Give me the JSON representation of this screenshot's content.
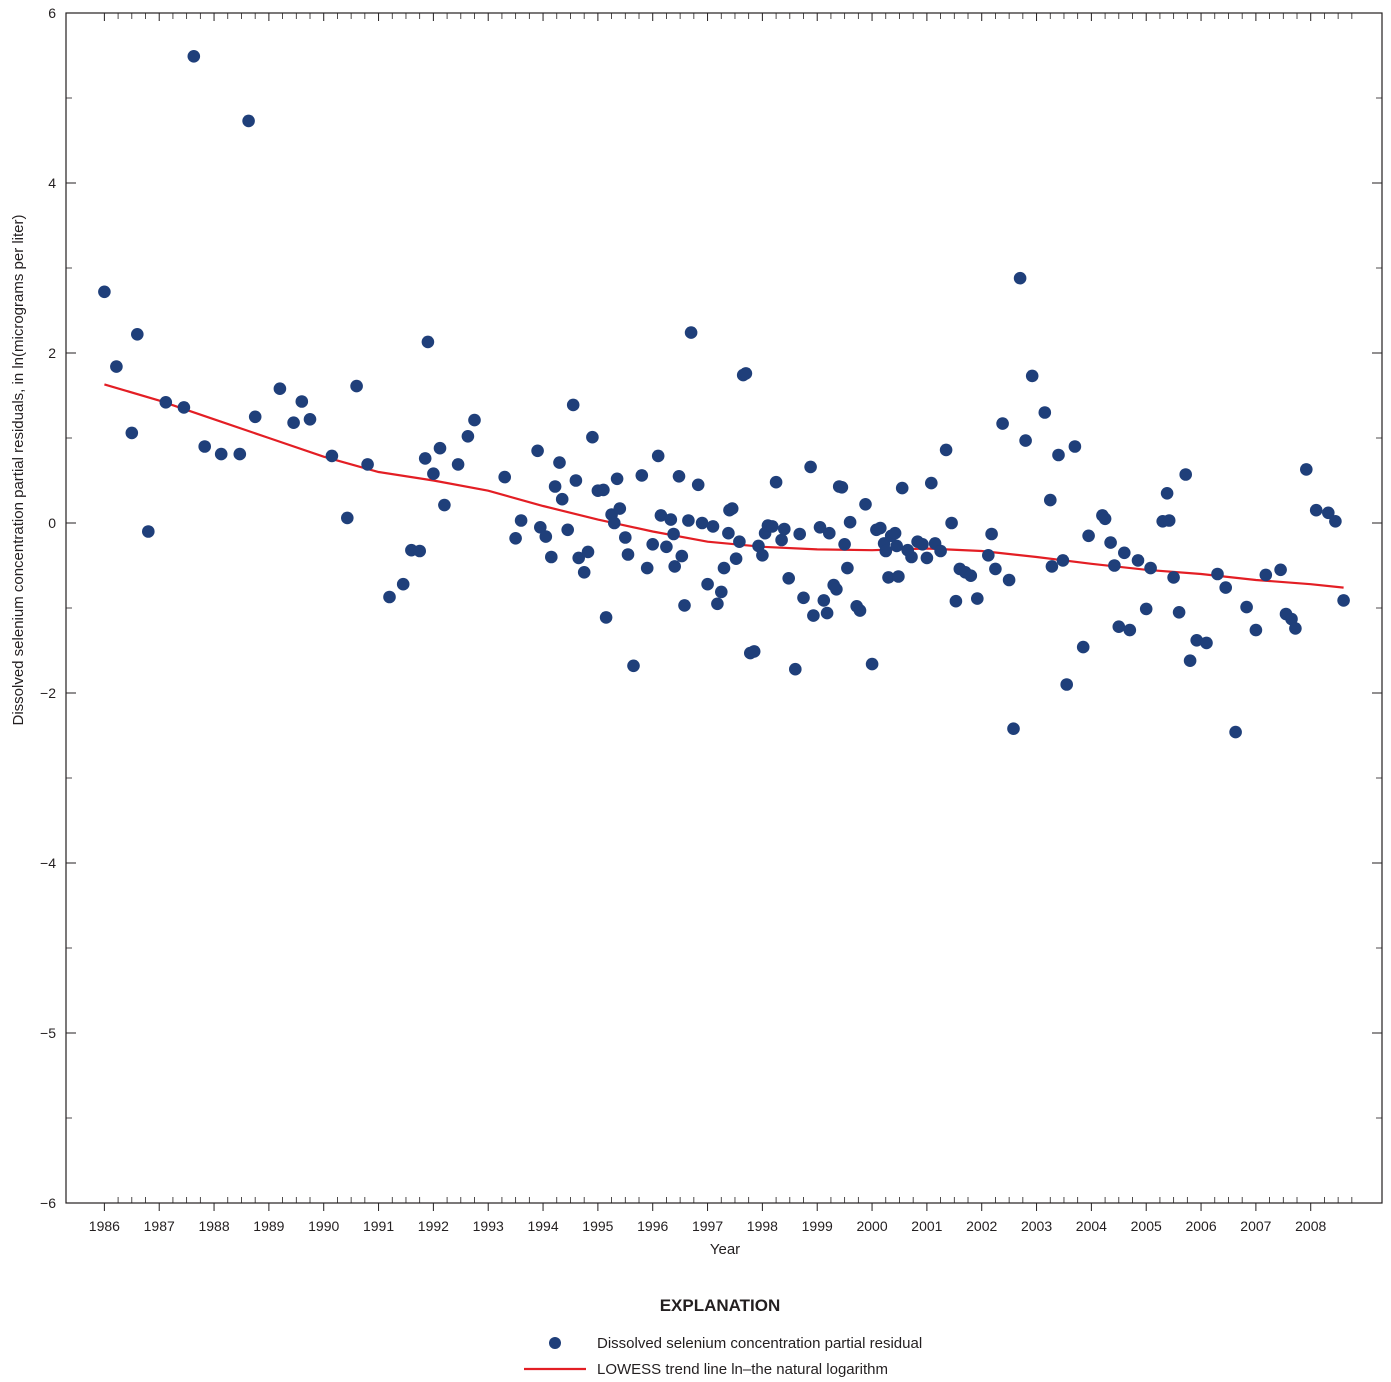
{
  "chart_data": {
    "type": "scatter",
    "title": "",
    "xlabel": "Year",
    "ylabel": "Dissolved selenium concentration partial residuals, in ln(micrograms per liter)",
    "xlim": [
      1985.3,
      2009.3
    ],
    "ylim": [
      -6,
      6
    ],
    "x_ticks": [
      "1986",
      "1987",
      "1988",
      "1989",
      "1990",
      "1991",
      "1992",
      "1993",
      "1994",
      "1995",
      "1996",
      "1997",
      "1998",
      "1999",
      "2000",
      "2001",
      "2002",
      "2003",
      "2004",
      "2005",
      "2006",
      "2007",
      "2008"
    ],
    "y_ticks": [
      "6",
      "4",
      "2",
      "0",
      "−2",
      "−4",
      "−5",
      "−6"
    ],
    "legend": {
      "title": "EXPLANATION",
      "position": "bottom-center",
      "point_label": "Dissolved selenium concentration partial residual",
      "line_label": "LOWESS trend line ln–the natural logarithm"
    },
    "colors": {
      "points": "#1f3f7a",
      "trend": "#e31e24",
      "axis": "#231f20"
    },
    "series": [
      {
        "type": "scatter",
        "points": [
          [
            1986.0,
            2.72
          ],
          [
            1986.22,
            1.84
          ],
          [
            1986.5,
            1.06
          ],
          [
            1986.6,
            2.22
          ],
          [
            1986.8,
            -0.1
          ],
          [
            1987.12,
            1.42
          ],
          [
            1987.45,
            1.36
          ],
          [
            1987.63,
            5.49
          ],
          [
            1987.83,
            0.9
          ],
          [
            1988.13,
            0.81
          ],
          [
            1988.47,
            0.81
          ],
          [
            1988.63,
            4.73
          ],
          [
            1988.75,
            1.25
          ],
          [
            1989.2,
            1.58
          ],
          [
            1989.45,
            1.18
          ],
          [
            1989.6,
            1.43
          ],
          [
            1989.75,
            1.22
          ],
          [
            1990.15,
            0.79
          ],
          [
            1990.43,
            0.06
          ],
          [
            1990.6,
            1.61
          ],
          [
            1990.8,
            0.69
          ],
          [
            1991.2,
            -0.87
          ],
          [
            1991.45,
            -0.72
          ],
          [
            1991.6,
            -0.32
          ],
          [
            1991.75,
            -0.33
          ],
          [
            1991.85,
            0.76
          ],
          [
            1991.9,
            2.13
          ],
          [
            1992.0,
            0.58
          ],
          [
            1992.12,
            0.88
          ],
          [
            1992.2,
            0.21
          ],
          [
            1992.45,
            0.69
          ],
          [
            1992.63,
            1.02
          ],
          [
            1992.75,
            1.21
          ],
          [
            1993.3,
            0.54
          ],
          [
            1993.5,
            -0.18
          ],
          [
            1993.6,
            0.03
          ],
          [
            1993.9,
            0.85
          ],
          [
            1993.95,
            -0.05
          ],
          [
            1994.05,
            -0.16
          ],
          [
            1994.15,
            -0.4
          ],
          [
            1994.22,
            0.43
          ],
          [
            1994.3,
            0.71
          ],
          [
            1994.35,
            0.28
          ],
          [
            1994.45,
            -0.08
          ],
          [
            1994.55,
            1.39
          ],
          [
            1994.6,
            0.5
          ],
          [
            1994.65,
            -0.41
          ],
          [
            1994.75,
            -0.58
          ],
          [
            1994.82,
            -0.34
          ],
          [
            1994.9,
            1.01
          ],
          [
            1995.0,
            0.38
          ],
          [
            1995.1,
            0.39
          ],
          [
            1995.15,
            -1.11
          ],
          [
            1995.25,
            0.1
          ],
          [
            1995.3,
            0.0
          ],
          [
            1995.35,
            0.52
          ],
          [
            1995.4,
            0.17
          ],
          [
            1995.5,
            -0.17
          ],
          [
            1995.55,
            -0.37
          ],
          [
            1995.65,
            -1.68
          ],
          [
            1995.8,
            0.56
          ],
          [
            1995.9,
            -0.53
          ],
          [
            1996.0,
            -0.25
          ],
          [
            1996.1,
            0.79
          ],
          [
            1996.15,
            0.09
          ],
          [
            1996.25,
            -0.28
          ],
          [
            1996.33,
            0.04
          ],
          [
            1996.38,
            -0.13
          ],
          [
            1996.4,
            -0.51
          ],
          [
            1996.48,
            0.55
          ],
          [
            1996.53,
            -0.39
          ],
          [
            1996.58,
            -0.97
          ],
          [
            1996.65,
            0.03
          ],
          [
            1996.7,
            2.24
          ],
          [
            1996.83,
            0.45
          ],
          [
            1996.9,
            0.0
          ],
          [
            1997.0,
            -0.72
          ],
          [
            1997.1,
            -0.04
          ],
          [
            1997.18,
            -0.95
          ],
          [
            1997.25,
            -0.81
          ],
          [
            1997.3,
            -0.53
          ],
          [
            1997.38,
            -0.12
          ],
          [
            1997.4,
            0.15
          ],
          [
            1997.45,
            0.17
          ],
          [
            1997.52,
            -0.42
          ],
          [
            1997.58,
            -0.22
          ],
          [
            1997.65,
            1.74
          ],
          [
            1997.7,
            1.76
          ],
          [
            1997.78,
            -1.53
          ],
          [
            1997.85,
            -1.51
          ],
          [
            1997.93,
            -0.27
          ],
          [
            1998.0,
            -0.38
          ],
          [
            1998.05,
            -0.12
          ],
          [
            1998.1,
            -0.03
          ],
          [
            1998.18,
            -0.04
          ],
          [
            1998.25,
            0.48
          ],
          [
            1998.35,
            -0.2
          ],
          [
            1998.4,
            -0.07
          ],
          [
            1998.48,
            -0.65
          ],
          [
            1998.6,
            -1.72
          ],
          [
            1998.68,
            -0.13
          ],
          [
            1998.75,
            -0.88
          ],
          [
            1998.88,
            0.66
          ],
          [
            1998.93,
            -1.09
          ],
          [
            1999.05,
            -0.05
          ],
          [
            1999.12,
            -0.91
          ],
          [
            1999.18,
            -1.06
          ],
          [
            1999.22,
            -0.12
          ],
          [
            1999.3,
            -0.73
          ],
          [
            1999.35,
            -0.78
          ],
          [
            1999.4,
            0.43
          ],
          [
            1999.45,
            0.42
          ],
          [
            1999.5,
            -0.25
          ],
          [
            1999.55,
            -0.53
          ],
          [
            1999.6,
            0.01
          ],
          [
            1999.72,
            -0.98
          ],
          [
            1999.78,
            -1.03
          ],
          [
            1999.88,
            0.22
          ],
          [
            2000.0,
            -1.66
          ],
          [
            2000.08,
            -0.08
          ],
          [
            2000.15,
            -0.06
          ],
          [
            2000.22,
            -0.24
          ],
          [
            2000.25,
            -0.33
          ],
          [
            2000.3,
            -0.64
          ],
          [
            2000.35,
            -0.15
          ],
          [
            2000.42,
            -0.12
          ],
          [
            2000.45,
            -0.27
          ],
          [
            2000.48,
            -0.63
          ],
          [
            2000.55,
            0.41
          ],
          [
            2000.65,
            -0.32
          ],
          [
            2000.72,
            -0.4
          ],
          [
            2000.83,
            -0.22
          ],
          [
            2000.92,
            -0.25
          ],
          [
            2001.0,
            -0.41
          ],
          [
            2001.08,
            0.47
          ],
          [
            2001.15,
            -0.24
          ],
          [
            2001.25,
            -0.33
          ],
          [
            2001.35,
            0.86
          ],
          [
            2001.45,
            0.0
          ],
          [
            2001.53,
            -0.92
          ],
          [
            2001.6,
            -0.54
          ],
          [
            2001.7,
            -0.58
          ],
          [
            2001.8,
            -0.62
          ],
          [
            2001.92,
            -0.89
          ],
          [
            2002.12,
            -0.38
          ],
          [
            2002.18,
            -0.13
          ],
          [
            2002.25,
            -0.54
          ],
          [
            2002.38,
            1.17
          ],
          [
            2002.5,
            -0.67
          ],
          [
            2002.58,
            -2.42
          ],
          [
            2002.7,
            2.88
          ],
          [
            2002.8,
            0.97
          ],
          [
            2002.92,
            1.73
          ],
          [
            2003.15,
            1.3
          ],
          [
            2003.25,
            0.27
          ],
          [
            2003.28,
            -0.51
          ],
          [
            2003.4,
            0.8
          ],
          [
            2003.48,
            -0.44
          ],
          [
            2003.55,
            -1.9
          ],
          [
            2003.7,
            0.9
          ],
          [
            2003.85,
            -1.46
          ],
          [
            2003.95,
            -0.15
          ],
          [
            2004.2,
            0.09
          ],
          [
            2004.25,
            0.05
          ],
          [
            2004.35,
            -0.23
          ],
          [
            2004.42,
            -0.5
          ],
          [
            2004.5,
            -1.22
          ],
          [
            2004.6,
            -0.35
          ],
          [
            2004.7,
            -1.26
          ],
          [
            2004.85,
            -0.44
          ],
          [
            2005.0,
            -1.01
          ],
          [
            2005.08,
            -0.53
          ],
          [
            2005.3,
            0.02
          ],
          [
            2005.38,
            0.35
          ],
          [
            2005.42,
            0.03
          ],
          [
            2005.5,
            -0.64
          ],
          [
            2005.6,
            -1.05
          ],
          [
            2005.72,
            0.57
          ],
          [
            2005.8,
            -1.62
          ],
          [
            2005.92,
            -1.38
          ],
          [
            2006.1,
            -1.41
          ],
          [
            2006.3,
            -0.6
          ],
          [
            2006.45,
            -0.76
          ],
          [
            2006.63,
            -2.46
          ],
          [
            2006.83,
            -0.99
          ],
          [
            2007.0,
            -1.26
          ],
          [
            2007.18,
            -0.61
          ],
          [
            2007.45,
            -0.55
          ],
          [
            2007.55,
            -1.07
          ],
          [
            2007.65,
            -1.13
          ],
          [
            2007.72,
            -1.24
          ],
          [
            2007.92,
            0.63
          ],
          [
            2008.1,
            0.15
          ],
          [
            2008.32,
            0.12
          ],
          [
            2008.45,
            0.02
          ],
          [
            2008.6,
            -0.91
          ]
        ]
      },
      {
        "type": "line",
        "points": [
          [
            1986.0,
            1.63
          ],
          [
            1987.0,
            1.44
          ],
          [
            1988.0,
            1.22
          ],
          [
            1989.0,
            1.0
          ],
          [
            1990.0,
            0.78
          ],
          [
            1991.0,
            0.6
          ],
          [
            1992.0,
            0.5
          ],
          [
            1993.0,
            0.38
          ],
          [
            1994.0,
            0.2
          ],
          [
            1995.0,
            0.04
          ],
          [
            1996.0,
            -0.1
          ],
          [
            1997.0,
            -0.22
          ],
          [
            1998.0,
            -0.28
          ],
          [
            1999.0,
            -0.31
          ],
          [
            2000.0,
            -0.32
          ],
          [
            2001.0,
            -0.3
          ],
          [
            2002.0,
            -0.33
          ],
          [
            2003.0,
            -0.4
          ],
          [
            2004.0,
            -0.48
          ],
          [
            2005.0,
            -0.55
          ],
          [
            2006.0,
            -0.6
          ],
          [
            2007.0,
            -0.67
          ],
          [
            2008.0,
            -0.72
          ],
          [
            2008.6,
            -0.76
          ]
        ]
      }
    ]
  }
}
